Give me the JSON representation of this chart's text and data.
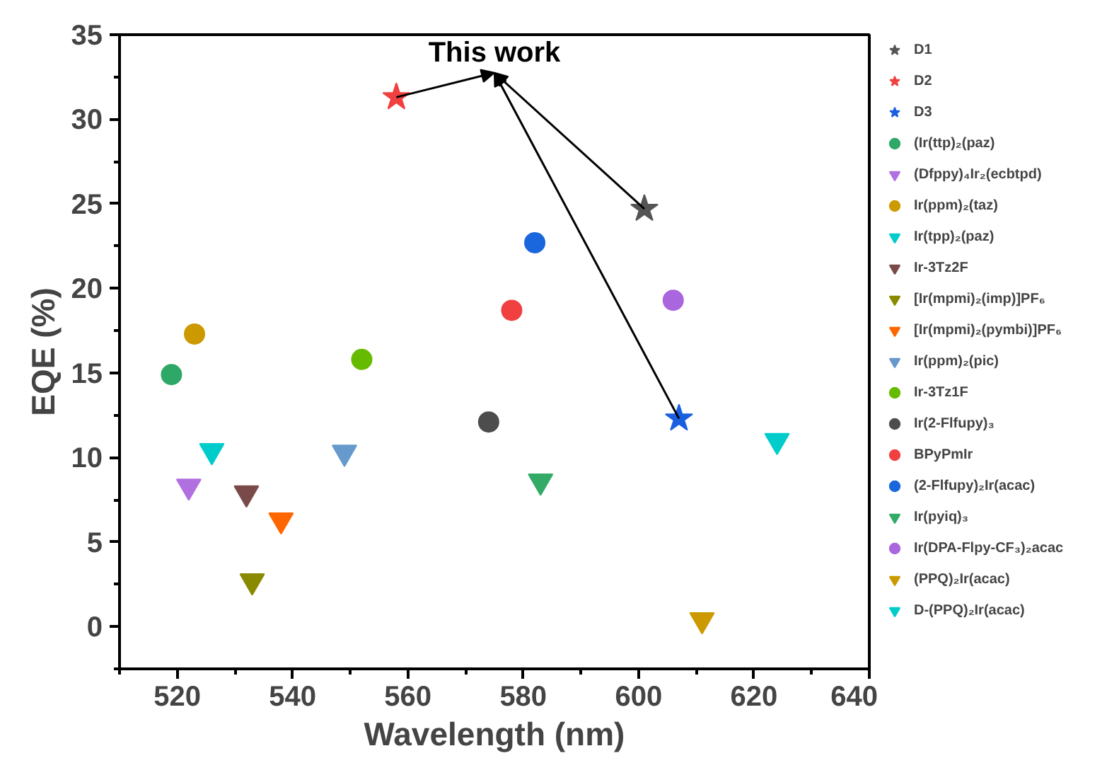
{
  "chart_data": {
    "type": "scatter",
    "xlabel": "Wavelength (nm)",
    "ylabel": "EQE (%)",
    "xlim": [
      510,
      640
    ],
    "xticks": [
      520,
      540,
      560,
      580,
      600,
      620,
      640
    ],
    "ylim": [
      -2.5,
      35
    ],
    "yticks": [
      0,
      5,
      10,
      15,
      20,
      25,
      30,
      35
    ],
    "grid": false,
    "legend": "right",
    "annotations": [
      {
        "text": "This work",
        "x": 558,
        "y": 31.3
      }
    ],
    "series": [
      {
        "name": "D1",
        "color": "#555555",
        "marker": "star",
        "x": [
          601
        ],
        "values": [
          24.7
        ]
      },
      {
        "name": "D2",
        "color": "#f0403f",
        "marker": "star",
        "x": [
          558
        ],
        "values": [
          31.3
        ]
      },
      {
        "name": "D3",
        "color": "#1a5fe0",
        "marker": "star",
        "x": [
          607
        ],
        "values": [
          12.3
        ]
      },
      {
        "name": "(Ir(ttp)₂(paz)",
        "color": "#2ea866",
        "marker": "circle",
        "x": [
          519
        ],
        "values": [
          14.9
        ]
      },
      {
        "name": "(Dfppy)₄Ir₂(ecbtpd)",
        "color": "#b070e0",
        "marker": "triangle_down",
        "x": [
          522
        ],
        "values": [
          8.3
        ]
      },
      {
        "name": "Ir(ppm)₂(taz)",
        "color": "#cc9900",
        "marker": "circle",
        "x": [
          523
        ],
        "values": [
          17.3
        ]
      },
      {
        "name": "Ir(tpp)₂(paz)",
        "color": "#00cccc",
        "marker": "triangle_down",
        "x": [
          526
        ],
        "values": [
          10.4
        ]
      },
      {
        "name": "Ir-3Tz2F",
        "color": "#7a4a4a",
        "marker": "triangle_down",
        "x": [
          532
        ],
        "values": [
          7.9
        ]
      },
      {
        "name": "[Ir(mpmi)₂(imp)]PF₆",
        "color": "#8a8a00",
        "marker": "triangle_down",
        "x": [
          533
        ],
        "values": [
          2.7
        ]
      },
      {
        "name": "[Ir(mpmi)₂(pymbi)]PF₆",
        "color": "#ff6600",
        "marker": "triangle_down",
        "x": [
          538
        ],
        "values": [
          6.3
        ]
      },
      {
        "name": "Ir(ppm)₂(pic)",
        "color": "#6699cc",
        "marker": "triangle_down",
        "x": [
          549
        ],
        "values": [
          10.3
        ]
      },
      {
        "name": "Ir-3Tz1F",
        "color": "#66bb00",
        "marker": "circle",
        "x": [
          552
        ],
        "values": [
          15.8
        ]
      },
      {
        "name": "Ir(2-Flfupy)₃",
        "color": "#4d4d4d",
        "marker": "circle",
        "x": [
          574
        ],
        "values": [
          12.1
        ]
      },
      {
        "name": "BPyPmIr",
        "color": "#f04040",
        "marker": "circle",
        "x": [
          578
        ],
        "values": [
          18.7
        ]
      },
      {
        "name": "(2-Flfupy)₂Ir(acac)",
        "color": "#1a66dd",
        "marker": "circle",
        "x": [
          582
        ],
        "values": [
          22.7
        ]
      },
      {
        "name": "Ir(pyiq)₃",
        "color": "#33aa66",
        "marker": "triangle_down",
        "x": [
          583
        ],
        "values": [
          8.6
        ]
      },
      {
        "name": "Ir(DPA-Flpy-CF₃)₂acac",
        "color": "#aa66dd",
        "marker": "circle",
        "x": [
          606
        ],
        "values": [
          19.3
        ]
      },
      {
        "name": "(PPQ)₂Ir(acac)",
        "color": "#cc9900",
        "marker": "triangle_down",
        "x": [
          611
        ],
        "values": [
          0.4
        ]
      },
      {
        "name": "D-(PPQ)₂Ir(acac)",
        "color": "#00cccc",
        "marker": "triangle_down",
        "x": [
          624
        ],
        "values": [
          11.0
        ]
      }
    ]
  }
}
